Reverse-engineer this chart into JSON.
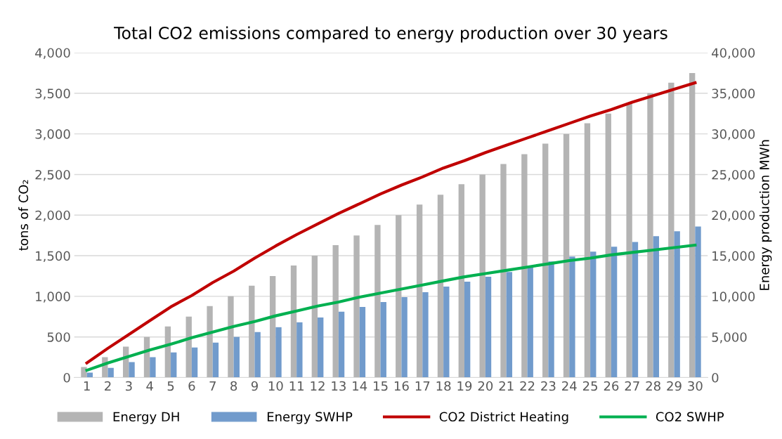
{
  "chart_data": {
    "type": "bar",
    "title": "Total CO2 emissions compared to energy production over 30 years",
    "ylabel": "tons of CO₂",
    "y2label": "Energy production MWh",
    "categories": [
      "1",
      "2",
      "3",
      "4",
      "5",
      "6",
      "7",
      "8",
      "9",
      "10",
      "11",
      "12",
      "13",
      "14",
      "15",
      "16",
      "17",
      "18",
      "19",
      "20",
      "21",
      "22",
      "23",
      "24",
      "25",
      "26",
      "27",
      "28",
      "29",
      "30"
    ],
    "series": [
      {
        "name": "Energy DH",
        "axis": "y2",
        "color": "#b4b4b4",
        "values": [
          1300,
          2500,
          3800,
          5000,
          6300,
          7500,
          8800,
          10000,
          11300,
          12500,
          13800,
          15000,
          16300,
          17500,
          18800,
          20000,
          21300,
          22500,
          23800,
          25000,
          26300,
          27500,
          28800,
          30000,
          31300,
          32500,
          33800,
          35000,
          36300,
          37500
        ]
      },
      {
        "name": "Energy SWHP",
        "axis": "y2",
        "color": "#719bcc",
        "values": [
          600,
          1200,
          1900,
          2500,
          3100,
          3700,
          4300,
          5000,
          5600,
          6200,
          6800,
          7400,
          8100,
          8700,
          9300,
          9900,
          10500,
          11200,
          11800,
          12400,
          13000,
          13600,
          14300,
          14900,
          15500,
          16100,
          16700,
          17400,
          18000,
          18600
        ]
      },
      {
        "name": "CO2 District Heating",
        "type": "line",
        "color": "#c00000",
        "values": [
          180,
          360,
          530,
          700,
          870,
          1010,
          1170,
          1310,
          1470,
          1620,
          1760,
          1890,
          2020,
          2140,
          2260,
          2370,
          2470,
          2580,
          2670,
          2770,
          2860,
          2950,
          3040,
          3130,
          3220,
          3300,
          3390,
          3470,
          3550,
          3630
        ]
      },
      {
        "name": "CO2 SWHP",
        "type": "line",
        "color": "#00b050",
        "values": [
          90,
          180,
          260,
          340,
          410,
          490,
          560,
          630,
          690,
          760,
          820,
          880,
          930,
          990,
          1040,
          1090,
          1140,
          1190,
          1240,
          1280,
          1320,
          1360,
          1400,
          1440,
          1470,
          1510,
          1540,
          1570,
          1600,
          1630
        ]
      }
    ],
    "ylim": [
      0,
      4000
    ],
    "yticks": [
      {
        "value": 0,
        "label": "0"
      },
      {
        "value": 500,
        "label": "500"
      },
      {
        "value": 1000,
        "label": "1,000"
      },
      {
        "value": 1500,
        "label": "1,500"
      },
      {
        "value": 2000,
        "label": "2,000"
      },
      {
        "value": 2500,
        "label": "2,500"
      },
      {
        "value": 3000,
        "label": "3,000"
      },
      {
        "value": 3500,
        "label": "3,500"
      },
      {
        "value": 4000,
        "label": "4,000"
      }
    ],
    "y2lim": [
      0,
      40000
    ],
    "y2ticks": [
      {
        "value": 0,
        "label": "0"
      },
      {
        "value": 5000,
        "label": "5,000"
      },
      {
        "value": 10000,
        "label": "10,000"
      },
      {
        "value": 15000,
        "label": "15,000"
      },
      {
        "value": 20000,
        "label": "20,000"
      },
      {
        "value": 25000,
        "label": "25,000"
      },
      {
        "value": 30000,
        "label": "30,000"
      },
      {
        "value": 35000,
        "label": "35,000"
      },
      {
        "value": 40000,
        "label": "40,000"
      }
    ],
    "grid": "y",
    "legend": "bottom",
    "marker": "none",
    "line_style": "solid"
  }
}
